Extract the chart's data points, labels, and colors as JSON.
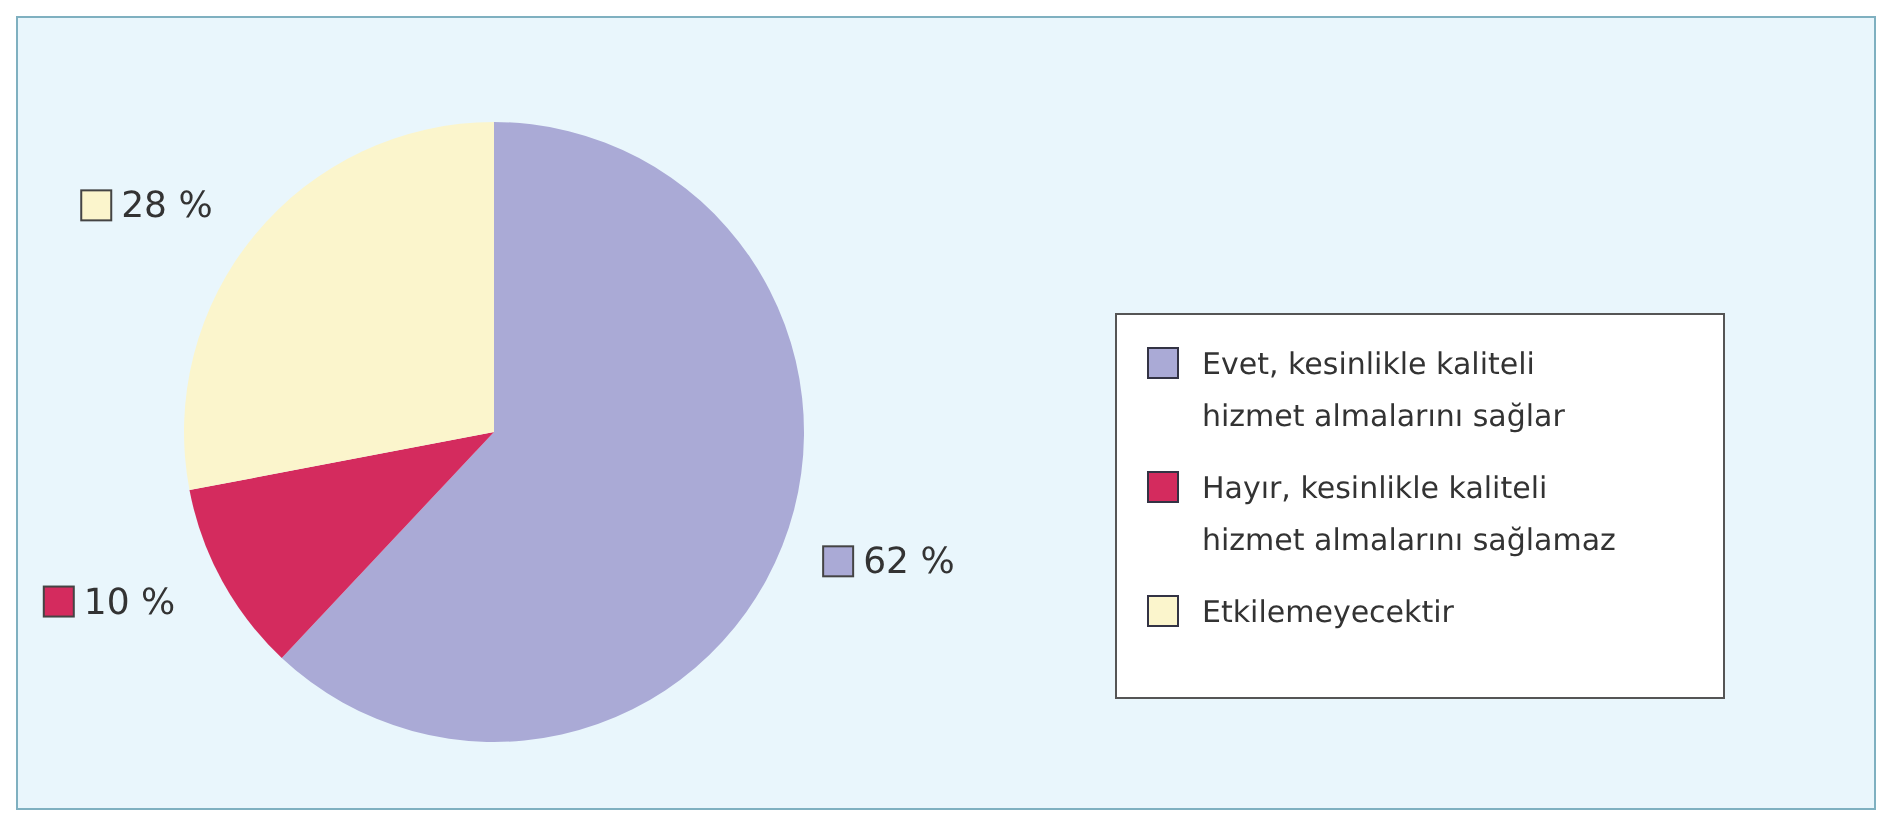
{
  "chart_data": {
    "type": "pie",
    "categories": [
      "Evet, kesinlikle kaliteli hizmet almalarını sağlar",
      "Hayır, kesinlikle kaliteli hizmet almalarını sağlamaz",
      "Etkilemeyecektir"
    ],
    "values": [
      62,
      10,
      28
    ],
    "colors": [
      "#aaaad6",
      "#d42b5e",
      "#fbf5cc"
    ],
    "value_labels": [
      "62 %",
      "10 %",
      "28 %"
    ],
    "legend": "right"
  }
}
